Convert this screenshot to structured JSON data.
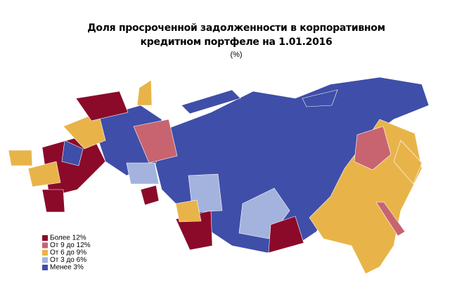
{
  "title": [
    "Доля просроченной задолженности в корпоративном",
    "кредитном портфеле на 1.01.2016"
  ],
  "subtitle": "(%)",
  "legend": [
    {
      "label": "Более 12%",
      "color": "#8b0a2a"
    },
    {
      "label": "От 9 до 12%",
      "color": "#c76470"
    },
    {
      "label": "От 6 до 9%",
      "color": "#e8b44a"
    },
    {
      "label": "От 3 до 6%",
      "color": "#a3b3dd"
    },
    {
      "label": "Менее 3%",
      "color": "#3f4ea8"
    }
  ]
}
